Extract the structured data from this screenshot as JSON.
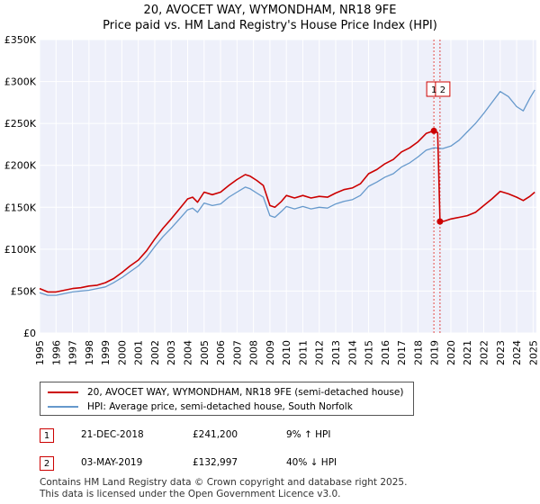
{
  "chart_data": {
    "type": "line",
    "title": "20, AVOCET WAY, WYMONDHAM, NR18 9FE",
    "subtitle": "Price paid vs. HM Land Registry's House Price Index (HPI)",
    "x_range": [
      1995.0,
      2025.2
    ],
    "ylim": [
      0,
      350000
    ],
    "y_ticks": [
      0,
      50000,
      100000,
      150000,
      200000,
      250000,
      300000,
      350000
    ],
    "y_tick_labels": [
      "£0",
      "£50K",
      "£100K",
      "£150K",
      "£200K",
      "£250K",
      "£300K",
      "£350K"
    ],
    "x_ticks": [
      1995,
      1996,
      1997,
      1998,
      1999,
      2000,
      2001,
      2002,
      2003,
      2004,
      2005,
      2006,
      2007,
      2008,
      2009,
      2010,
      2011,
      2012,
      2013,
      2014,
      2015,
      2016,
      2017,
      2018,
      2019,
      2020,
      2021,
      2022,
      2023,
      2024,
      2025
    ],
    "x_tick_labels": [
      "1995",
      "1996",
      "1997",
      "1998",
      "1999",
      "2000",
      "2001",
      "2002",
      "2003",
      "2004",
      "2005",
      "2006",
      "2007",
      "2008",
      "2009",
      "2010",
      "2011",
      "2012",
      "2013",
      "2014",
      "2015",
      "2016",
      "2017",
      "2018",
      "2019",
      "2020",
      "2021",
      "2022",
      "2023",
      "2024",
      "2025"
    ],
    "grid": true,
    "series": [
      {
        "name": "20, AVOCET WAY, WYMONDHAM, NR18 9FE (semi-detached house)",
        "color": "#cc0000",
        "x": [
          1995.0,
          1995.5,
          1996.0,
          1996.5,
          1997.0,
          1997.5,
          1998.0,
          1998.5,
          1999.0,
          1999.5,
          2000.0,
          2000.5,
          2001.0,
          2001.5,
          2002.0,
          2002.5,
          2003.0,
          2003.5,
          2004.0,
          2004.3,
          2004.6,
          2005.0,
          2005.5,
          2006.0,
          2006.5,
          2007.0,
          2007.5,
          2007.8,
          2008.2,
          2008.6,
          2009.0,
          2009.3,
          2009.7,
          2010.0,
          2010.5,
          2011.0,
          2011.5,
          2012.0,
          2012.5,
          2013.0,
          2013.5,
          2014.0,
          2014.5,
          2015.0,
          2015.5,
          2016.0,
          2016.5,
          2017.0,
          2017.5,
          2018.0,
          2018.5,
          2018.97,
          2019.2,
          2019.34,
          2019.6,
          2020.0,
          2020.5,
          2021.0,
          2021.5,
          2022.0,
          2022.5,
          2023.0,
          2023.5,
          2024.0,
          2024.4,
          2024.8,
          2025.1
        ],
        "values": [
          53000,
          49000,
          49000,
          51000,
          53000,
          54000,
          56000,
          57000,
          60000,
          65000,
          72000,
          80000,
          87000,
          98000,
          112000,
          125000,
          136000,
          148000,
          160000,
          162000,
          156000,
          168000,
          165000,
          168000,
          176000,
          183000,
          189000,
          187000,
          182000,
          176000,
          152000,
          150000,
          157000,
          164000,
          161000,
          164000,
          161000,
          163000,
          162000,
          167000,
          171000,
          173000,
          178000,
          190000,
          195000,
          202000,
          207000,
          216000,
          221000,
          228000,
          238000,
          241200,
          239000,
          132997,
          133500,
          136000,
          138000,
          140000,
          144000,
          152000,
          160000,
          169000,
          166000,
          162000,
          158000,
          163000,
          168000
        ]
      },
      {
        "name": "HPI: Average price, semi-detached house, South Norfolk",
        "color": "#6699cc",
        "x": [
          1995.0,
          1995.5,
          1996.0,
          1996.5,
          1997.0,
          1997.5,
          1998.0,
          1998.5,
          1999.0,
          1999.5,
          2000.0,
          2000.5,
          2001.0,
          2001.5,
          2002.0,
          2002.5,
          2003.0,
          2003.5,
          2004.0,
          2004.3,
          2004.6,
          2005.0,
          2005.5,
          2006.0,
          2006.5,
          2007.0,
          2007.5,
          2007.8,
          2008.2,
          2008.6,
          2009.0,
          2009.3,
          2009.7,
          2010.0,
          2010.5,
          2011.0,
          2011.5,
          2012.0,
          2012.5,
          2013.0,
          2013.5,
          2014.0,
          2014.5,
          2015.0,
          2015.5,
          2016.0,
          2016.5,
          2017.0,
          2017.5,
          2018.0,
          2018.5,
          2018.97,
          2019.5,
          2020.0,
          2020.5,
          2021.0,
          2021.5,
          2022.0,
          2022.5,
          2023.0,
          2023.5,
          2024.0,
          2024.4,
          2024.8,
          2025.1
        ],
        "values": [
          48000,
          45000,
          45000,
          47000,
          49000,
          50000,
          51000,
          53000,
          55000,
          60000,
          66000,
          73000,
          80000,
          90000,
          103000,
          115000,
          125000,
          136000,
          147000,
          149000,
          144000,
          155000,
          152000,
          154000,
          162000,
          168000,
          174000,
          172000,
          167000,
          162000,
          140000,
          138000,
          145000,
          151000,
          148000,
          151000,
          148000,
          150000,
          149000,
          154000,
          157000,
          159000,
          164000,
          175000,
          180000,
          186000,
          190000,
          198000,
          203000,
          210000,
          218000,
          221000,
          220000,
          223000,
          230000,
          240000,
          250000,
          262000,
          275000,
          288000,
          282000,
          270000,
          265000,
          280000,
          290000
        ]
      }
    ],
    "annotations": [
      {
        "label": "1",
        "x": 2018.97,
        "value": 241200
      },
      {
        "label": "2",
        "x": 2019.34,
        "value": 132997
      }
    ]
  },
  "legend": {
    "items": [
      {
        "label": "20, AVOCET WAY, WYMONDHAM, NR18 9FE (semi-detached house)",
        "color": "#cc0000"
      },
      {
        "label": "HPI: Average price, semi-detached house, South Norfolk",
        "color": "#6699cc"
      }
    ]
  },
  "transactions": [
    {
      "num": "1",
      "date": "21-DEC-2018",
      "price": "£241,200",
      "hpi": "9% ↑ HPI"
    },
    {
      "num": "2",
      "date": "03-MAY-2019",
      "price": "£132,997",
      "hpi": "40% ↓ HPI"
    }
  ],
  "footer": {
    "line1": "Contains HM Land Registry data © Crown copyright and database right 2025.",
    "line2": "This data is licensed under the Open Government Licence v3.0."
  }
}
